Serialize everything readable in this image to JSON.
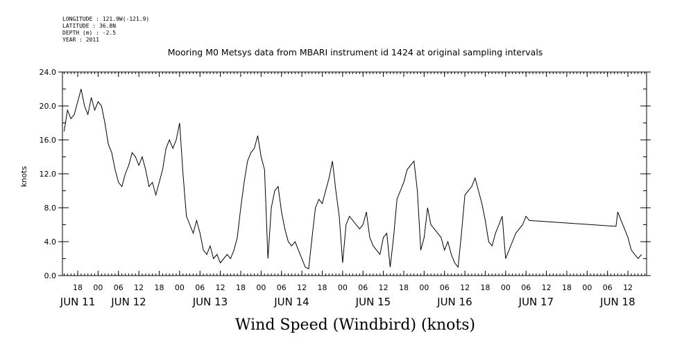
{
  "header": {
    "longitude": "LONGITUDE : 121.9W(-121.9)",
    "latitude": "LATITUDE : 36.8N",
    "depth": "DEPTH (m) : -2.5",
    "year": "YEAR : 2011"
  },
  "chart_data": {
    "type": "line",
    "title": "Mooring M0 Metsys data from MBARI instrument id 1424 at original sampling intervals",
    "xlabel": "Wind Speed (Windbird) (knots)",
    "ylabel": "knots",
    "ylim": [
      0,
      24
    ],
    "y_ticks": [
      "0.0",
      "4.0",
      "8.0",
      "12.0",
      "16.0",
      "20.0",
      "24.0"
    ],
    "x_unit": "hours since JUN 11 00:00",
    "xlim": [
      13.5,
      185.5
    ],
    "x_hour_ticks": [
      {
        "h": 18,
        "label": "18"
      },
      {
        "h": 24,
        "label": "00"
      },
      {
        "h": 30,
        "label": "06"
      },
      {
        "h": 36,
        "label": "12"
      },
      {
        "h": 42,
        "label": "18"
      },
      {
        "h": 48,
        "label": "00"
      },
      {
        "h": 54,
        "label": "06"
      },
      {
        "h": 60,
        "label": "12"
      },
      {
        "h": 66,
        "label": "18"
      },
      {
        "h": 72,
        "label": "00"
      },
      {
        "h": 78,
        "label": "06"
      },
      {
        "h": 84,
        "label": "12"
      },
      {
        "h": 90,
        "label": "18"
      },
      {
        "h": 96,
        "label": "00"
      },
      {
        "h": 102,
        "label": "06"
      },
      {
        "h": 108,
        "label": "12"
      },
      {
        "h": 114,
        "label": "18"
      },
      {
        "h": 120,
        "label": "00"
      },
      {
        "h": 126,
        "label": "06"
      },
      {
        "h": 132,
        "label": "12"
      },
      {
        "h": 138,
        "label": "18"
      },
      {
        "h": 144,
        "label": "00"
      },
      {
        "h": 150,
        "label": "06"
      },
      {
        "h": 156,
        "label": "12"
      },
      {
        "h": 162,
        "label": "18"
      },
      {
        "h": 168,
        "label": "00"
      },
      {
        "h": 174,
        "label": "06"
      },
      {
        "h": 180,
        "label": "12"
      }
    ],
    "x_day_labels": [
      {
        "h": 18,
        "label": "JUN 11"
      },
      {
        "h": 33,
        "label": "JUN 12"
      },
      {
        "h": 57,
        "label": "JUN 13"
      },
      {
        "h": 81,
        "label": "JUN 14"
      },
      {
        "h": 105,
        "label": "JUN 15"
      },
      {
        "h": 129,
        "label": "JUN 16"
      },
      {
        "h": 153,
        "label": "JUN 17"
      },
      {
        "h": 177,
        "label": "JUN 18"
      }
    ],
    "series": [
      {
        "x": [
          14,
          15,
          16,
          17,
          18,
          19,
          20,
          21,
          22,
          23,
          24,
          25,
          26,
          27,
          28,
          29,
          30,
          31,
          32,
          33,
          34,
          35,
          36,
          37,
          38,
          39,
          40,
          41,
          42,
          43,
          44,
          45,
          46,
          47,
          48,
          49,
          50,
          51,
          52,
          53,
          54,
          55,
          56,
          57,
          58,
          59,
          60,
          61,
          62,
          63,
          64,
          65,
          66,
          67,
          68,
          69,
          70,
          71,
          72,
          73,
          74,
          75,
          76,
          77,
          78,
          79,
          80,
          81,
          82,
          83,
          84,
          85,
          86,
          87,
          88,
          89,
          90,
          91,
          92,
          93,
          94,
          95,
          96,
          97,
          98,
          99,
          100,
          101,
          102,
          103,
          104,
          105,
          106,
          107,
          108,
          109,
          110,
          111,
          112,
          113,
          114,
          115,
          116,
          117,
          118,
          119,
          120,
          121,
          122,
          123,
          124,
          125,
          126,
          127,
          128,
          129,
          130,
          131,
          132,
          133,
          134,
          135,
          136,
          137,
          138,
          139,
          140,
          141,
          142,
          143,
          144,
          145,
          146,
          147,
          148,
          149,
          150,
          151,
          176.5,
          177,
          178,
          179,
          180,
          181,
          182,
          183,
          184
        ],
        "y": [
          17.0,
          19.5,
          18.5,
          19.0,
          20.5,
          22.0,
          20.0,
          19.0,
          21.0,
          19.5,
          20.5,
          20.0,
          18.0,
          15.5,
          14.5,
          12.5,
          11.0,
          10.5,
          12.0,
          13.0,
          14.5,
          14.0,
          13.0,
          14.0,
          12.5,
          10.5,
          11.0,
          9.5,
          11.0,
          12.5,
          15.0,
          16.0,
          15.0,
          16.0,
          18.0,
          12.0,
          7.0,
          6.0,
          5.0,
          6.5,
          5.0,
          3.0,
          2.5,
          3.5,
          2.0,
          2.5,
          1.5,
          2.0,
          2.5,
          2.0,
          3.0,
          4.5,
          8.0,
          11.0,
          13.5,
          14.5,
          15.0,
          16.5,
          14.0,
          12.5,
          2.0,
          8.0,
          10.0,
          10.5,
          7.5,
          5.5,
          4.0,
          3.5,
          4.0,
          3.0,
          2.0,
          1.0,
          0.8,
          4.5,
          8.0,
          9.0,
          8.5,
          10.0,
          11.5,
          13.5,
          10.0,
          7.0,
          1.5,
          6.0,
          7.0,
          6.5,
          6.0,
          5.5,
          6.0,
          7.5,
          4.5,
          3.5,
          3.0,
          2.5,
          4.5,
          5.0,
          1.0,
          4.5,
          9.0,
          10.0,
          11.0,
          12.5,
          13.0,
          13.5,
          10.0,
          3.0,
          4.5,
          8.0,
          6.0,
          5.5,
          5.0,
          4.5,
          3.0,
          4.0,
          2.5,
          1.5,
          1.0,
          5.0,
          9.5,
          10.0,
          10.5,
          11.5,
          10.0,
          8.5,
          6.5,
          4.0,
          3.5,
          5.0,
          6.0,
          7.0,
          2.0,
          3.0,
          4.0,
          5.0,
          5.5,
          6.0,
          7.0,
          6.5,
          5.8,
          7.5,
          6.5,
          5.5,
          4.5,
          3.0,
          2.5,
          2.0,
          2.5
        ]
      }
    ]
  }
}
